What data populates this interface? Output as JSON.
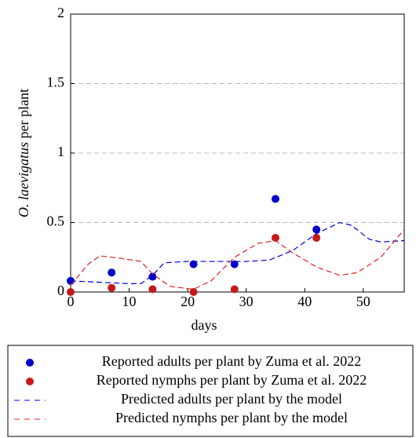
{
  "chart_data": {
    "type": "line",
    "xlabel": "days",
    "ylabel_italic": "O. laevigatus",
    "ylabel": "per plant",
    "xlim": [
      0,
      57
    ],
    "ylim": [
      0,
      2
    ],
    "xticks": [
      0,
      10,
      20,
      30,
      40,
      50
    ],
    "yticks": [
      0,
      0.5,
      1,
      1.5,
      2
    ],
    "grid": true,
    "series": [
      {
        "name": "Reported adults per plant by Zuma et al.  2022",
        "type": "scatter",
        "color": "#0000c8",
        "x": [
          0,
          7,
          14,
          21,
          28,
          35,
          42
        ],
        "values": [
          0.08,
          0.14,
          0.11,
          0.2,
          0.2,
          0.67,
          0.45
        ]
      },
      {
        "name": "Reported nymphs per plant by Zuma et al.  2022",
        "type": "scatter",
        "color": "#c41a1a",
        "x": [
          0,
          7,
          14,
          21,
          28,
          35,
          42
        ],
        "values": [
          0,
          0.03,
          0.02,
          0,
          0.02,
          0.39,
          0.39
        ]
      },
      {
        "name": "Predicted adults per plant by the model",
        "type": "line",
        "color": "#0000e0",
        "x": [
          0,
          5,
          10,
          12,
          14,
          16,
          20,
          25,
          30,
          34,
          38,
          42,
          46,
          48,
          51,
          53,
          57
        ],
        "values": [
          0.08,
          0.07,
          0.06,
          0.06,
          0.12,
          0.21,
          0.22,
          0.22,
          0.22,
          0.23,
          0.3,
          0.42,
          0.5,
          0.48,
          0.38,
          0.36,
          0.37
        ]
      },
      {
        "name": "Predicted nymphs per plant by the model",
        "type": "line",
        "color": "#e02020",
        "x": [
          0,
          3,
          5,
          9,
          12,
          14,
          17,
          21,
          24,
          28,
          32,
          35,
          38,
          42,
          46,
          49,
          53,
          57
        ],
        "values": [
          0.05,
          0.2,
          0.26,
          0.24,
          0.22,
          0.13,
          0.04,
          0.02,
          0.08,
          0.25,
          0.35,
          0.37,
          0.28,
          0.18,
          0.12,
          0.14,
          0.25,
          0.45
        ]
      }
    ]
  }
}
